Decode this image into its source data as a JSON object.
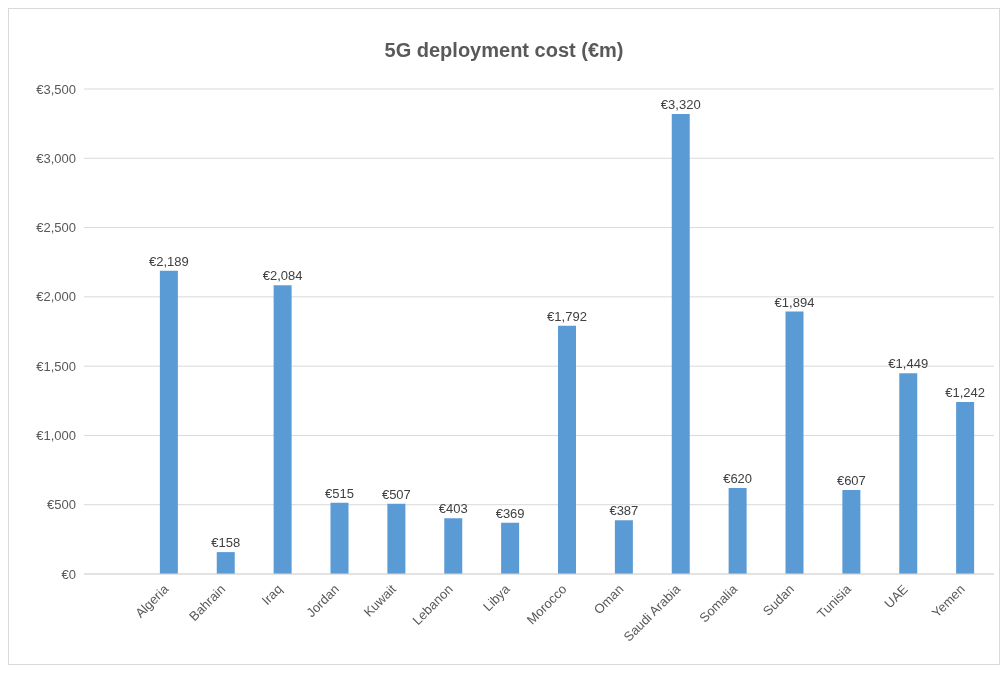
{
  "chart_data": {
    "type": "bar",
    "title": "5G deployment cost (€m)",
    "categories": [
      null,
      "Algeria",
      "Bahrain",
      "Iraq",
      "Jordan",
      "Kuwait",
      "Lebanon",
      "Libya",
      "Morocco",
      "Oman",
      "Saudi Arabia",
      "Somalia",
      "Sudan",
      "Tunisia",
      "UAE",
      "Yemen"
    ],
    "values": [
      null,
      2189,
      158,
      2084,
      515,
      507,
      403,
      369,
      1792,
      387,
      3320,
      620,
      1894,
      607,
      1449,
      1242
    ],
    "value_labels": [
      null,
      "€2,189",
      "€158",
      "€2,084",
      "€515",
      "€507",
      "€403",
      "€369",
      "€1,792",
      "€387",
      "€3,320",
      "€620",
      "€1,894",
      "€607",
      "€1,449",
      "€1,242"
    ],
    "color": "#5b9bd5",
    "ylim": [
      0,
      3500
    ],
    "yticks": [
      {
        "value": 0,
        "label": "€0"
      },
      {
        "value": 500,
        "label": "€500"
      },
      {
        "value": 1000,
        "label": "€1,000"
      },
      {
        "value": 1500,
        "label": "€1,500"
      },
      {
        "value": 2000,
        "label": "€2,000"
      },
      {
        "value": 2500,
        "label": "€2,500"
      },
      {
        "value": 3000,
        "label": "€3,000"
      },
      {
        "value": 3500,
        "label": "€3,500"
      }
    ],
    "grid": "y",
    "legend": false
  }
}
